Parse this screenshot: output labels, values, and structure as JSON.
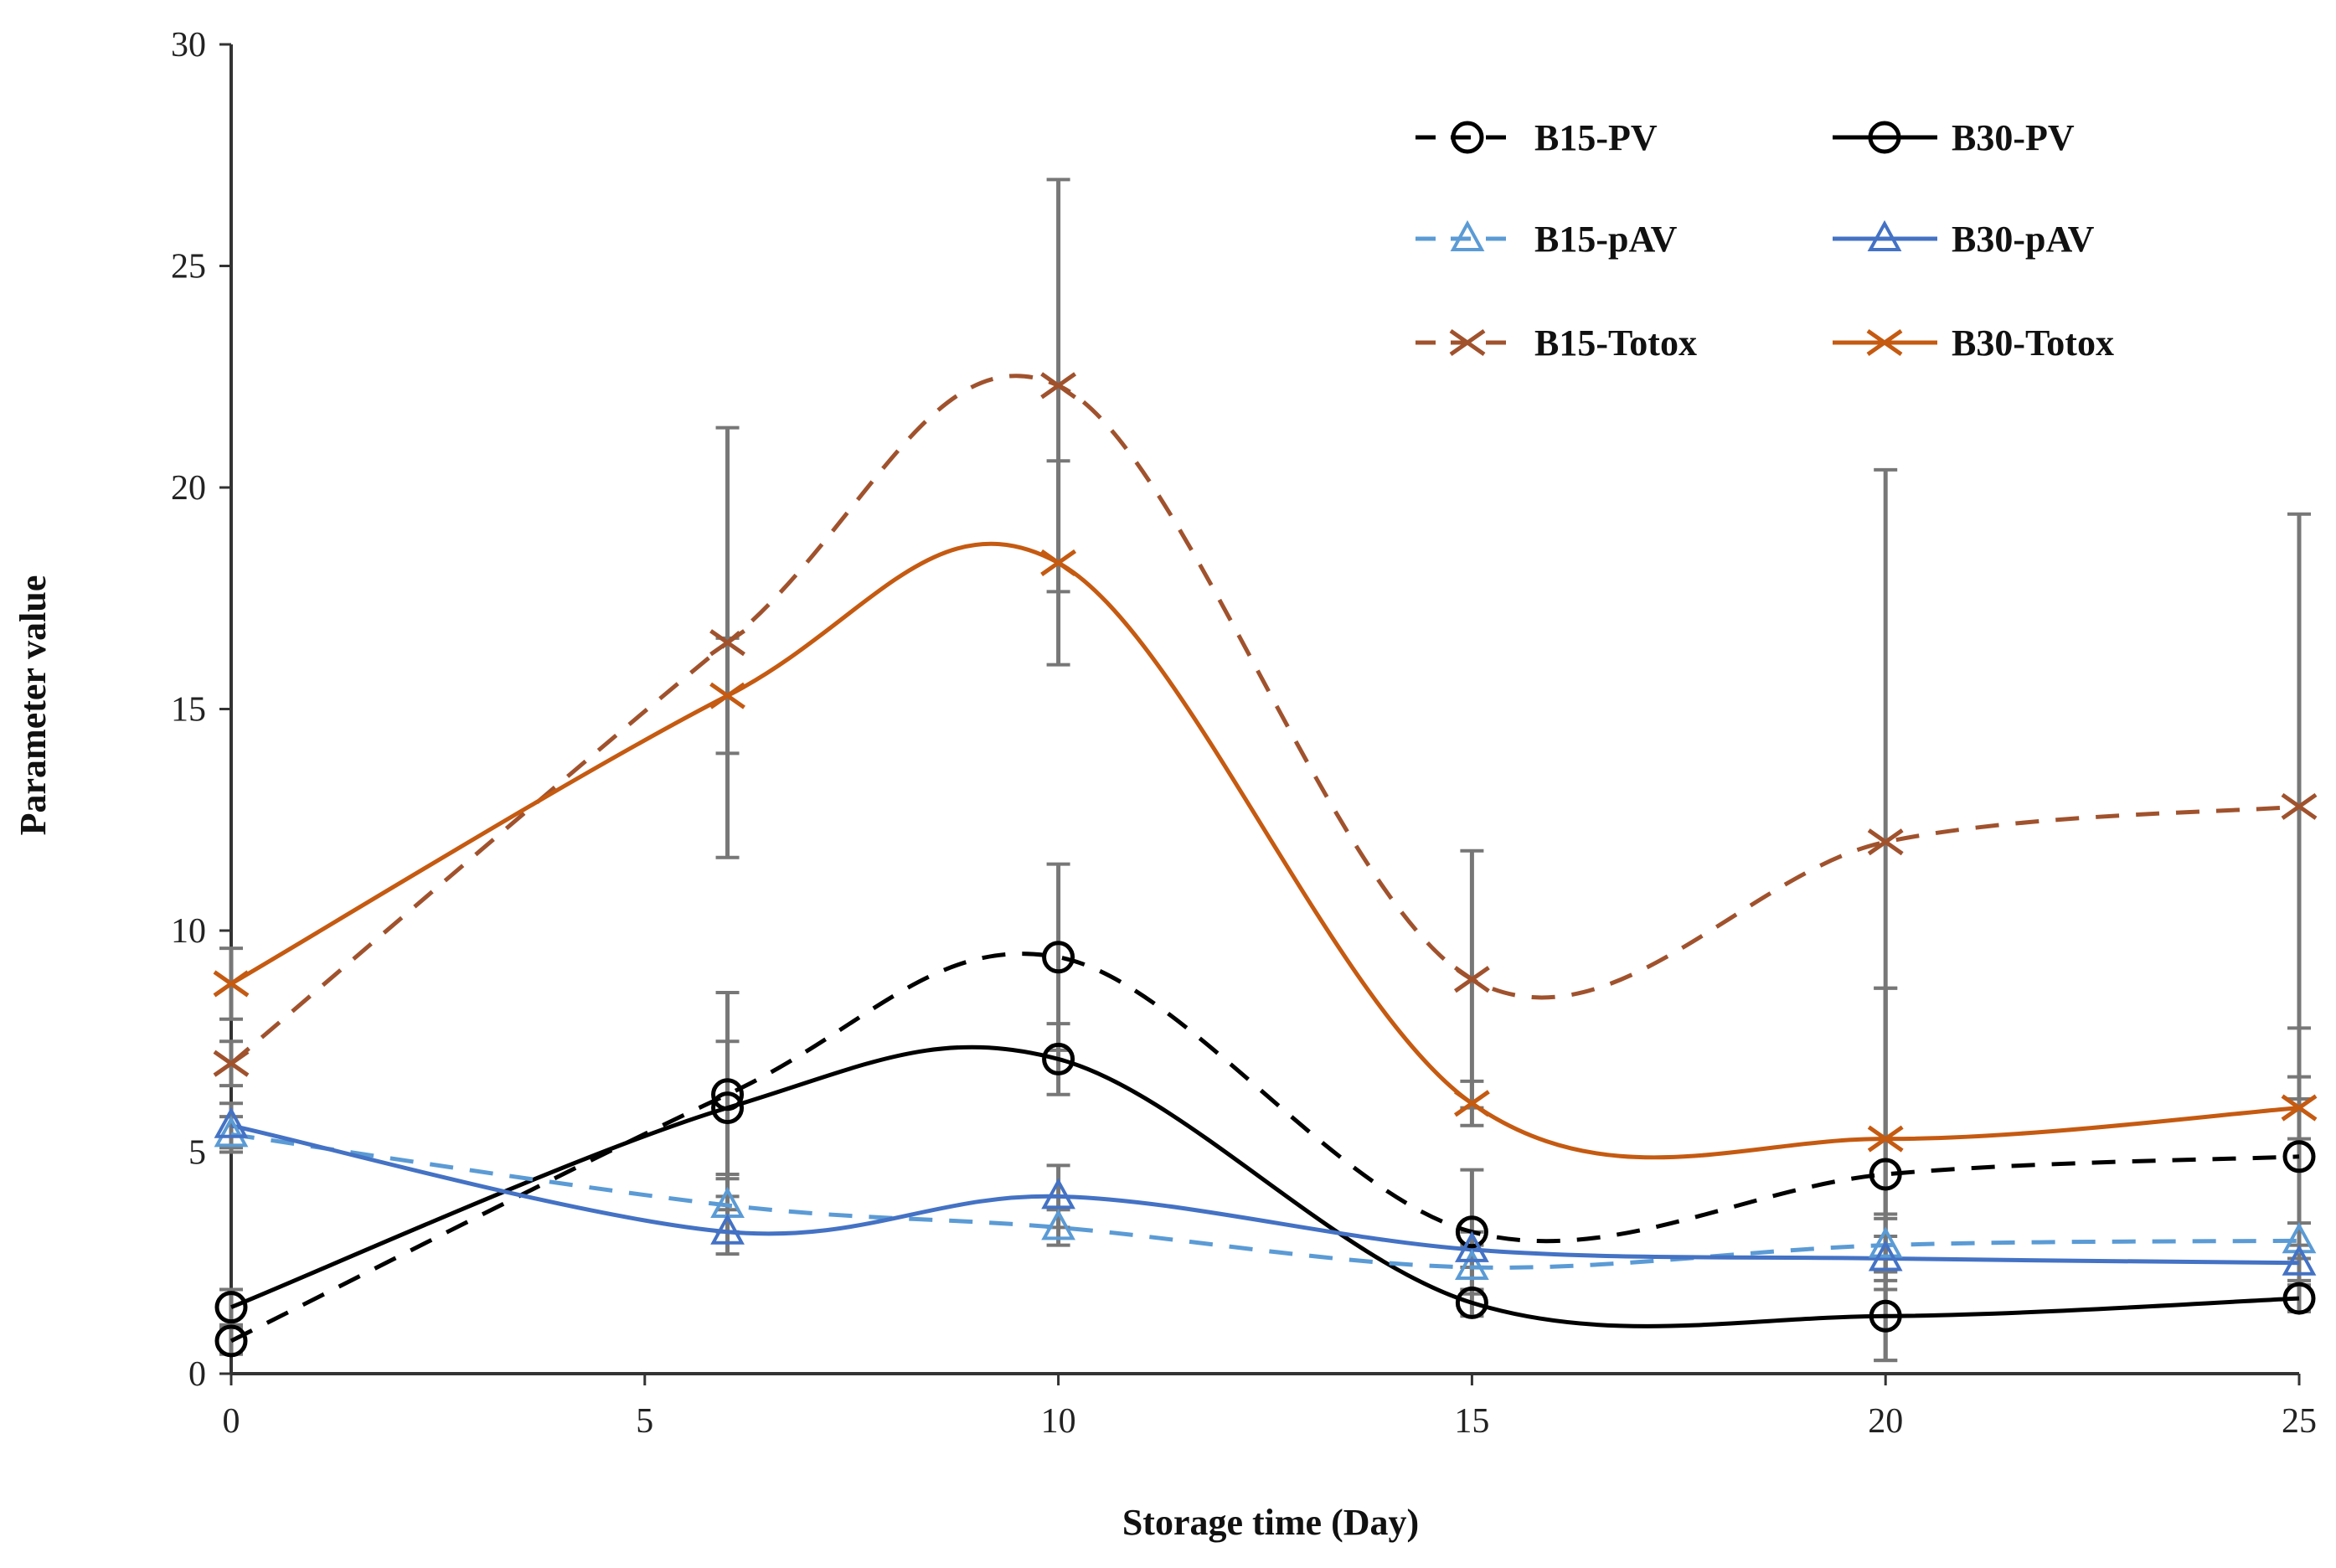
{
  "chart_data": {
    "type": "line",
    "title": "",
    "xlabel": "Storage time (Day)",
    "ylabel": "Parameter value",
    "xlim": [
      0,
      25
    ],
    "ylim": [
      0,
      30
    ],
    "xticks": [
      0,
      5,
      10,
      15,
      20,
      25
    ],
    "yticks": [
      0,
      5,
      10,
      15,
      20,
      25,
      30
    ],
    "grid": false,
    "legend_position": "top-right",
    "x": [
      0,
      6,
      10,
      15,
      20,
      25
    ],
    "series": [
      {
        "name": "B15-PV",
        "color": "#000000",
        "dashed": true,
        "marker": "circle",
        "values": [
          0.74,
          6.3,
          9.4,
          3.2,
          4.5,
          4.9
        ],
        "error": [
          0.3,
          2.3,
          2.1,
          1.4,
          4.2,
          2.9
        ]
      },
      {
        "name": "B30-PV",
        "color": "#000000",
        "dashed": false,
        "marker": "circle",
        "values": [
          1.5,
          6.0,
          7.1,
          1.6,
          1.3,
          1.7
        ],
        "error": [
          0.4,
          1.5,
          0.8,
          0.3,
          1.0,
          0.3
        ]
      },
      {
        "name": "B15-pAV",
        "color": "#5b9bd5",
        "dashed": true,
        "marker": "triangle",
        "values": [
          5.4,
          3.8,
          3.3,
          2.4,
          2.9,
          3.0
        ],
        "error": [
          0.4,
          0.6,
          0.4,
          0.5,
          0.6,
          0.4
        ]
      },
      {
        "name": "B30-pAV",
        "color": "#4472c4",
        "dashed": false,
        "marker": "triangle",
        "values": [
          5.6,
          3.2,
          4.0,
          2.8,
          2.6,
          2.5
        ],
        "error": [
          0.5,
          0.5,
          0.7,
          0.4,
          0.5,
          0.4
        ]
      },
      {
        "name": "B15-Totox",
        "color": "#a0522d",
        "dashed": true,
        "marker": "x",
        "values": [
          7.0,
          16.5,
          22.3,
          8.9,
          12.0,
          12.8
        ],
        "error": [
          0.5,
          4.85,
          4.65,
          2.9,
          8.4,
          6.6
        ]
      },
      {
        "name": "B30-Totox",
        "color": "#c55a11",
        "dashed": false,
        "marker": "x",
        "values": [
          8.8,
          15.3,
          18.3,
          6.1,
          5.3,
          6.0
        ],
        "error": [
          0.8,
          1.3,
          2.3,
          0.5,
          3.4,
          0.7
        ]
      }
    ]
  }
}
